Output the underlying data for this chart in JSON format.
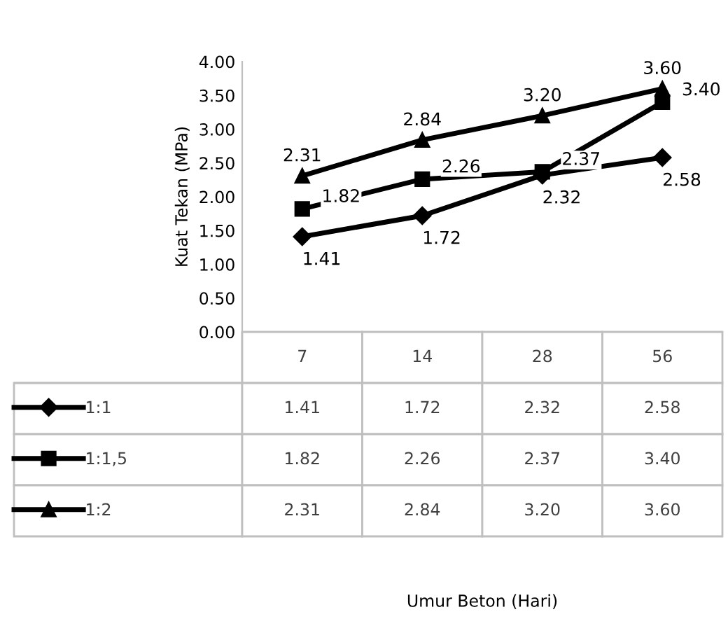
{
  "chart_data": {
    "type": "line",
    "annotations": [
      "Umur Beton (Hari)"
    ],
    "ylabel": "Kuat Tekan (MPa)",
    "categories": [
      "7",
      "14",
      "28",
      "56"
    ],
    "ylim": [
      0,
      4
    ],
    "yticks": [
      {
        "value": 0,
        "label": "0.00"
      },
      {
        "value": 0.5,
        "label": "0.50"
      },
      {
        "value": 1,
        "label": "1.00"
      },
      {
        "value": 1.5,
        "label": "1.50"
      },
      {
        "value": 2,
        "label": "2.00"
      },
      {
        "value": 2.5,
        "label": "2.50"
      },
      {
        "value": 3,
        "label": "3.00"
      },
      {
        "value": 3.5,
        "label": "3.50"
      },
      {
        "value": 4,
        "label": "4.00"
      }
    ],
    "grid": false,
    "legend": "bottom",
    "series": [
      {
        "name": "1:1",
        "color": "#000000",
        "marker": "diamond",
        "values": [
          1.41,
          1.72,
          2.32,
          2.58
        ],
        "value_labels": [
          "1.41",
          "1.72",
          "2.32",
          "2.58"
        ]
      },
      {
        "name": "1:1,5",
        "color": "#000000",
        "marker": "square",
        "values": [
          1.82,
          2.26,
          2.37,
          3.4
        ],
        "value_labels": [
          "1.82",
          "2.26",
          "2.37",
          "3.40"
        ]
      },
      {
        "name": "1:2",
        "color": "#000000",
        "marker": "triangle",
        "values": [
          2.31,
          2.84,
          3.2,
          3.6
        ],
        "value_labels": [
          "2.31",
          "2.84",
          "3.20",
          "3.60"
        ]
      }
    ]
  }
}
